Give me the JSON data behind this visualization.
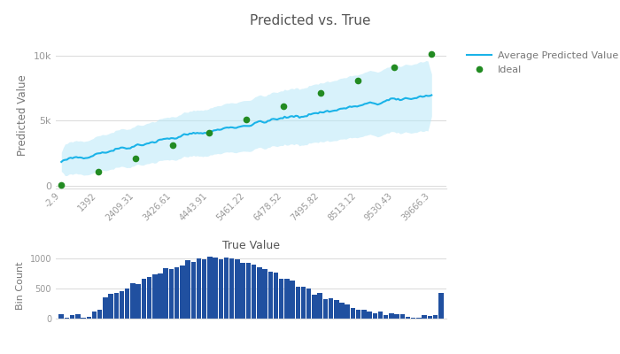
{
  "title": "Predicted vs. True",
  "xlabel": "True Value",
  "ylabel": "Predicted Value",
  "hist_ylabel": "Bin Count",
  "x_tick_labels": [
    "-2.9",
    "1392",
    "2409.31",
    "3426.61",
    "4443.91",
    "5461.22",
    "6478.52",
    "7495.82",
    "8513.12",
    "9530.43",
    "39666.3"
  ],
  "ylim_main": [
    -200,
    11000
  ],
  "yticks_main": [
    0,
    5000,
    10000
  ],
  "ytick_labels_main": [
    "0",
    "5k",
    "10k"
  ],
  "line_color": "#1ab3e8",
  "fill_color": "#b8e8f8",
  "ideal_color": "#228B22",
  "bar_color": "#2050a0",
  "background_color": "#ffffff",
  "legend_ideal": "Ideal",
  "legend_avg": "Average Predicted Value",
  "hist_ylim": [
    0,
    1100
  ],
  "hist_yticks": [
    0,
    500,
    1000
  ],
  "title_color": "#555555",
  "axis_label_color": "#777777",
  "tick_color": "#999999",
  "grid_color": "#dddddd"
}
